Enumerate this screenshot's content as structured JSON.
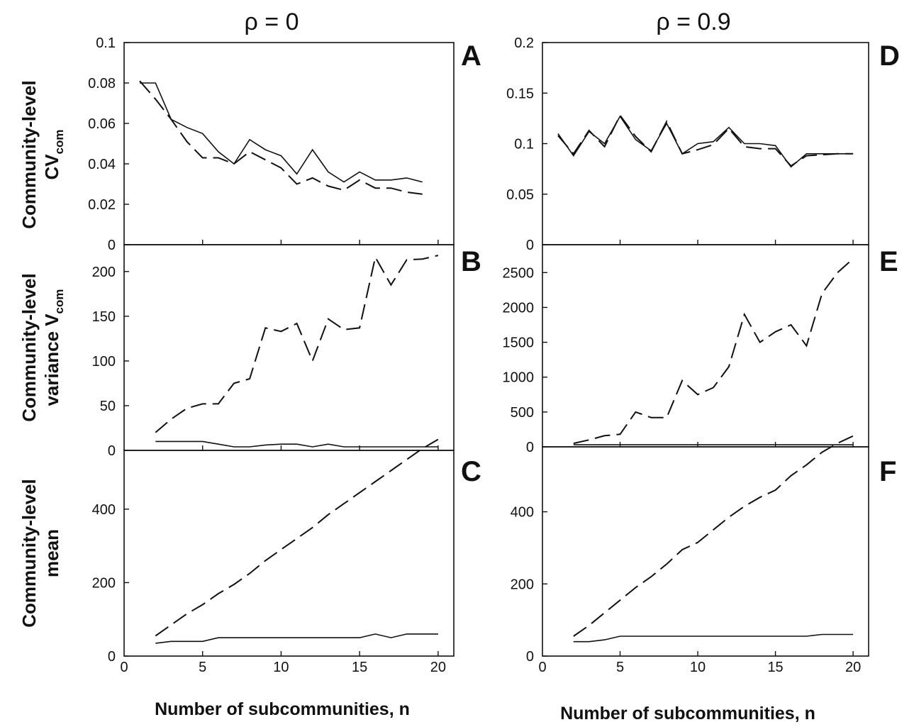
{
  "figure": {
    "col_titles": [
      "ρ = 0",
      "ρ = 0.9"
    ],
    "xlabel_left": "Number of subcommunities, n",
    "xlabel_right": "Number of subcommunities, n",
    "ylabels": {
      "row1": {
        "line1": "Community-level",
        "line2_main": "CV",
        "line2_sub": "com"
      },
      "row2": {
        "line1": "Community-level",
        "line2_main": "variance V",
        "line2_sub": "com"
      },
      "row3": {
        "line1": "Community-level",
        "line2_main": "mean",
        "line2_sub": ""
      }
    }
  },
  "chart_data": [
    {
      "panel": "A",
      "type": "line",
      "xlim": [
        0,
        21
      ],
      "ylim": [
        0,
        0.1
      ],
      "yticks": [
        "0",
        "0.02",
        "0.04",
        "0.06",
        "0.08",
        "0.1"
      ],
      "series": [
        {
          "style": "solid",
          "x": [
            1,
            2,
            3,
            4,
            5,
            6,
            7,
            8,
            9,
            10,
            11,
            12,
            13,
            14,
            15,
            16,
            17,
            18,
            19
          ],
          "y": [
            0.08,
            0.08,
            0.062,
            0.058,
            0.055,
            0.046,
            0.04,
            0.052,
            0.047,
            0.044,
            0.035,
            0.047,
            0.036,
            0.031,
            0.036,
            0.032,
            0.032,
            0.033,
            0.031
          ]
        },
        {
          "style": "dashed",
          "x": [
            1,
            2,
            3,
            4,
            5,
            6,
            7,
            8,
            9,
            10,
            11,
            12,
            13,
            14,
            15,
            16,
            17,
            18,
            19
          ],
          "y": [
            0.081,
            0.072,
            0.062,
            0.051,
            0.043,
            0.043,
            0.04,
            0.046,
            0.042,
            0.038,
            0.03,
            0.033,
            0.029,
            0.027,
            0.032,
            0.028,
            0.028,
            0.026,
            0.025
          ]
        }
      ]
    },
    {
      "panel": "B",
      "type": "line",
      "xlim": [
        0,
        21
      ],
      "ylim": [
        0,
        230
      ],
      "yticks": [
        "0",
        "50",
        "100",
        "150",
        "200"
      ],
      "series": [
        {
          "style": "solid",
          "x": [
            2,
            3,
            4,
            5,
            6,
            7,
            8,
            9,
            10,
            11,
            12,
            13,
            14,
            15,
            16,
            17,
            18,
            19,
            20
          ],
          "y": [
            10,
            10,
            10,
            10,
            7,
            4,
            4,
            6,
            7,
            7,
            4,
            7,
            4,
            4,
            4,
            4,
            4,
            4,
            4
          ]
        },
        {
          "style": "dashed",
          "x": [
            2,
            3,
            4,
            5,
            6,
            7,
            8,
            9,
            10,
            11,
            12,
            13,
            14,
            15,
            16,
            17,
            18,
            19,
            20
          ],
          "y": [
            20,
            35,
            47,
            52,
            52,
            75,
            80,
            137,
            133,
            142,
            100,
            147,
            135,
            137,
            216,
            185,
            213,
            214,
            218
          ]
        }
      ]
    },
    {
      "panel": "C",
      "type": "line",
      "xlim": [
        0,
        21
      ],
      "ylim": [
        0,
        560
      ],
      "yticks": [
        "0",
        "200",
        "400"
      ],
      "series": [
        {
          "style": "solid",
          "x": [
            2,
            3,
            4,
            5,
            6,
            7,
            8,
            9,
            10,
            11,
            12,
            13,
            14,
            15,
            16,
            17,
            18,
            19,
            20
          ],
          "y": [
            35,
            40,
            40,
            40,
            50,
            50,
            50,
            50,
            50,
            50,
            50,
            50,
            50,
            50,
            60,
            50,
            60,
            60,
            60
          ]
        },
        {
          "style": "dashed",
          "x": [
            2,
            3,
            4,
            5,
            6,
            7,
            8,
            9,
            10,
            11,
            12,
            13,
            14,
            15,
            16,
            17,
            18,
            19,
            20
          ],
          "y": [
            55,
            85,
            115,
            140,
            170,
            195,
            225,
            260,
            290,
            320,
            350,
            385,
            415,
            445,
            475,
            505,
            535,
            565,
            590
          ]
        }
      ]
    },
    {
      "panel": "D",
      "type": "line",
      "xlim": [
        0,
        21
      ],
      "ylim": [
        0,
        0.2
      ],
      "yticks": [
        "0",
        "0.05",
        "0.1",
        "0.15",
        "0.2"
      ],
      "series": [
        {
          "style": "solid",
          "x": [
            1,
            2,
            3,
            4,
            5,
            6,
            7,
            8,
            9,
            10,
            11,
            12,
            13,
            14,
            15,
            16,
            17,
            18,
            19,
            20
          ],
          "y": [
            0.11,
            0.088,
            0.112,
            0.1,
            0.127,
            0.104,
            0.093,
            0.12,
            0.09,
            0.1,
            0.102,
            0.116,
            0.1,
            0.1,
            0.098,
            0.077,
            0.09,
            0.09,
            0.09,
            0.09
          ]
        },
        {
          "style": "dashed",
          "x": [
            1,
            2,
            3,
            4,
            5,
            6,
            7,
            8,
            9,
            10,
            11,
            12,
            13,
            14,
            15,
            16,
            17,
            18,
            19,
            20
          ],
          "y": [
            0.108,
            0.09,
            0.113,
            0.097,
            0.128,
            0.107,
            0.092,
            0.122,
            0.09,
            0.094,
            0.099,
            0.115,
            0.097,
            0.095,
            0.095,
            0.078,
            0.088,
            0.089,
            0.09,
            0.09
          ]
        }
      ]
    },
    {
      "panel": "E",
      "type": "line",
      "xlim": [
        0,
        21
      ],
      "ylim": [
        0,
        2900
      ],
      "yticks": [
        "0",
        "500",
        "1000",
        "1500",
        "2000",
        "2500"
      ],
      "series": [
        {
          "style": "solid",
          "x": [
            2,
            3,
            4,
            5,
            6,
            7,
            8,
            9,
            10,
            11,
            12,
            13,
            14,
            15,
            16,
            17,
            18,
            19,
            20
          ],
          "y": [
            30,
            30,
            30,
            30,
            30,
            30,
            30,
            30,
            30,
            30,
            30,
            30,
            30,
            30,
            30,
            30,
            30,
            30,
            30
          ]
        },
        {
          "style": "dashed",
          "x": [
            2,
            3,
            4,
            5,
            6,
            7,
            8,
            9,
            10,
            11,
            12,
            13,
            14,
            15,
            16,
            17,
            18,
            19,
            20
          ],
          "y": [
            50,
            100,
            160,
            180,
            500,
            420,
            420,
            950,
            750,
            850,
            1150,
            1900,
            1500,
            1650,
            1750,
            1450,
            2200,
            2500,
            2700
          ]
        }
      ]
    },
    {
      "panel": "F",
      "type": "line",
      "xlim": [
        0,
        21
      ],
      "ylim": [
        0,
        580
      ],
      "yticks": [
        "0",
        "200",
        "400"
      ],
      "xticks": [
        "0",
        "5",
        "10",
        "15",
        "20"
      ],
      "series": [
        {
          "style": "solid",
          "x": [
            2,
            3,
            4,
            5,
            6,
            7,
            8,
            9,
            10,
            11,
            12,
            13,
            14,
            15,
            16,
            17,
            18,
            19,
            20
          ],
          "y": [
            40,
            40,
            45,
            55,
            55,
            55,
            55,
            55,
            55,
            55,
            55,
            55,
            55,
            55,
            55,
            55,
            60,
            60,
            60
          ]
        },
        {
          "style": "dashed",
          "x": [
            2,
            3,
            4,
            5,
            6,
            7,
            8,
            9,
            10,
            11,
            12,
            13,
            14,
            15,
            16,
            17,
            18,
            19,
            20
          ],
          "y": [
            55,
            85,
            120,
            155,
            190,
            220,
            255,
            295,
            315,
            350,
            385,
            415,
            440,
            460,
            500,
            530,
            565,
            590,
            610
          ]
        }
      ]
    }
  ],
  "bottom_xticks": [
    "0",
    "5",
    "10",
    "15",
    "20"
  ]
}
